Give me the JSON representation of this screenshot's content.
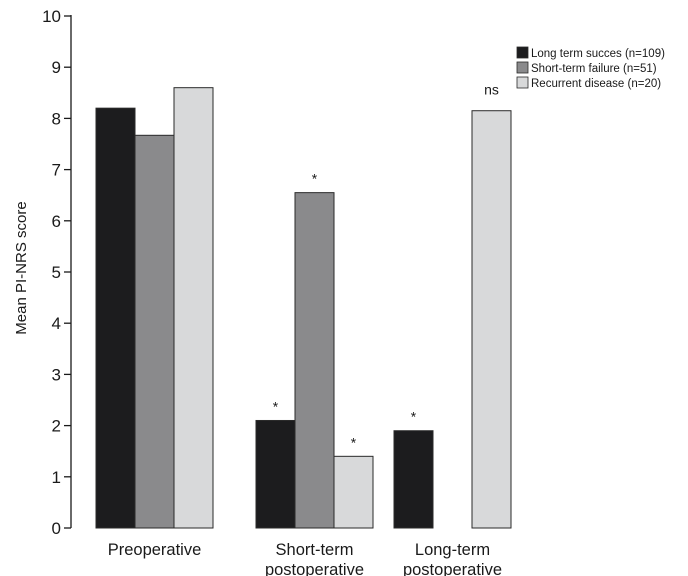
{
  "chart_data": {
    "type": "bar",
    "title": "",
    "xlabel": "",
    "ylabel": "Mean PI-NRS score",
    "ylim": [
      0,
      10
    ],
    "yticks": [
      "0",
      "1",
      "2",
      "3",
      "4",
      "5",
      "6",
      "7",
      "8",
      "9",
      "10"
    ],
    "categories": [
      [
        "Preoperative"
      ],
      [
        "Short-term",
        "postoperative"
      ],
      [
        "Long-term",
        "postoperative"
      ]
    ],
    "series": [
      {
        "name": "Long term succes (n=109)",
        "color": "#1c1c1e",
        "values": [
          8.2,
          2.1,
          1.9
        ],
        "annotations": [
          "",
          "*",
          "*"
        ]
      },
      {
        "name": "Short-term failure (n=51)",
        "color": "#8a8a8c",
        "values": [
          7.67,
          6.55,
          null
        ],
        "annotations": [
          "",
          "*",
          ""
        ]
      },
      {
        "name": "Recurrent disease (n=20)",
        "color": "#d8d9da",
        "values": [
          8.6,
          1.4,
          8.15
        ],
        "annotations": [
          "",
          "*",
          "ns"
        ]
      }
    ],
    "legend_position": "top-right",
    "grid": false
  }
}
